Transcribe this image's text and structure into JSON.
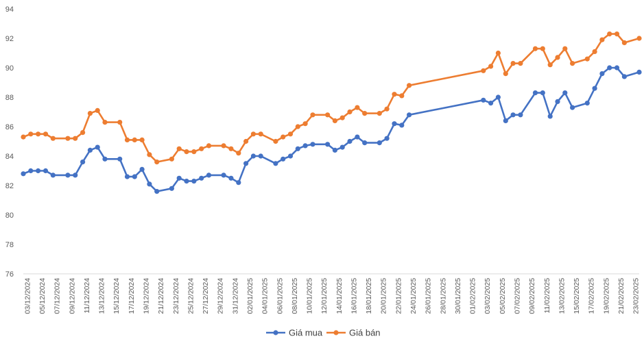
{
  "chart_data": {
    "type": "line",
    "title": "",
    "xlabel": "",
    "ylabel": "",
    "ylim": [
      76,
      94
    ],
    "yticks": [
      76,
      78,
      80,
      82,
      84,
      86,
      88,
      90,
      92,
      94
    ],
    "grid": false,
    "legend_position": "bottom",
    "x_tick_labels": [
      "03/12/2024",
      "05/12/2024",
      "07/12/2024",
      "09/12/2024",
      "11/12/2024",
      "13/12/2024",
      "15/12/2024",
      "17/12/2024",
      "19/12/2024",
      "21/12/2024",
      "23/12/2024",
      "25/12/2024",
      "27/12/2024",
      "29/12/2024",
      "31/12/2024",
      "02/01/2025",
      "04/01/2025",
      "06/01/2025",
      "08/01/2025",
      "10/01/2025",
      "12/01/2025",
      "14/01/2025",
      "16/01/2025",
      "18/01/2025",
      "20/01/2025",
      "22/01/2025",
      "24/01/2025",
      "26/01/2025",
      "28/01/2025",
      "30/01/2025",
      "01/02/2025",
      "03/02/2025",
      "05/02/2025",
      "07/02/2025",
      "09/02/2025",
      "11/02/2025",
      "13/02/2025",
      "15/02/2025",
      "17/02/2025",
      "19/02/2025",
      "21/02/2025",
      "23/02/2025"
    ],
    "x_start": "2024-12-03",
    "x_end": "2025-02-24",
    "series": [
      {
        "name": "Giá mua",
        "color": "#4472C4",
        "points": [
          [
            "2024-12-03",
            82.8
          ],
          [
            "2024-12-04",
            83.0
          ],
          [
            "2024-12-05",
            83.0
          ],
          [
            "2024-12-06",
            83.0
          ],
          [
            "2024-12-07",
            82.7
          ],
          [
            "2024-12-09",
            82.7
          ],
          [
            "2024-12-10",
            82.7
          ],
          [
            "2024-12-11",
            83.6
          ],
          [
            "2024-12-12",
            84.4
          ],
          [
            "2024-12-13",
            84.6
          ],
          [
            "2024-12-14",
            83.8
          ],
          [
            "2024-12-16",
            83.8
          ],
          [
            "2024-12-17",
            82.6
          ],
          [
            "2024-12-18",
            82.6
          ],
          [
            "2024-12-19",
            83.1
          ],
          [
            "2024-12-20",
            82.1
          ],
          [
            "2024-12-21",
            81.6
          ],
          [
            "2024-12-23",
            81.8
          ],
          [
            "2024-12-24",
            82.5
          ],
          [
            "2024-12-25",
            82.3
          ],
          [
            "2024-12-26",
            82.3
          ],
          [
            "2024-12-27",
            82.5
          ],
          [
            "2024-12-28",
            82.7
          ],
          [
            "2024-12-30",
            82.7
          ],
          [
            "2024-12-31",
            82.5
          ],
          [
            "2025-01-01",
            82.2
          ],
          [
            "2025-01-02",
            83.5
          ],
          [
            "2025-01-03",
            84.0
          ],
          [
            "2025-01-04",
            84.0
          ],
          [
            "2025-01-06",
            83.5
          ],
          [
            "2025-01-07",
            83.8
          ],
          [
            "2025-01-08",
            84.0
          ],
          [
            "2025-01-09",
            84.5
          ],
          [
            "2025-01-10",
            84.7
          ],
          [
            "2025-01-11",
            84.8
          ],
          [
            "2025-01-13",
            84.8
          ],
          [
            "2025-01-14",
            84.4
          ],
          [
            "2025-01-15",
            84.6
          ],
          [
            "2025-01-16",
            85.0
          ],
          [
            "2025-01-17",
            85.3
          ],
          [
            "2025-01-18",
            84.9
          ],
          [
            "2025-01-20",
            84.9
          ],
          [
            "2025-01-21",
            85.2
          ],
          [
            "2025-01-22",
            86.2
          ],
          [
            "2025-01-23",
            86.1
          ],
          [
            "2025-01-24",
            86.8
          ],
          [
            "2025-02-03",
            87.8
          ],
          [
            "2025-02-04",
            87.6
          ],
          [
            "2025-02-05",
            88.0
          ],
          [
            "2025-02-06",
            86.4
          ],
          [
            "2025-02-07",
            86.8
          ],
          [
            "2025-02-08",
            86.8
          ],
          [
            "2025-02-10",
            88.3
          ],
          [
            "2025-02-11",
            88.3
          ],
          [
            "2025-02-12",
            86.7
          ],
          [
            "2025-02-13",
            87.7
          ],
          [
            "2025-02-14",
            88.3
          ],
          [
            "2025-02-15",
            87.3
          ],
          [
            "2025-02-17",
            87.6
          ],
          [
            "2025-02-18",
            88.6
          ],
          [
            "2025-02-19",
            89.6
          ],
          [
            "2025-02-20",
            90.0
          ],
          [
            "2025-02-21",
            90.0
          ],
          [
            "2025-02-22",
            89.4
          ],
          [
            "2025-02-24",
            89.7
          ]
        ]
      },
      {
        "name": "Giá bán",
        "color": "#ED7D31",
        "points": [
          [
            "2024-12-03",
            85.3
          ],
          [
            "2024-12-04",
            85.5
          ],
          [
            "2024-12-05",
            85.5
          ],
          [
            "2024-12-06",
            85.5
          ],
          [
            "2024-12-07",
            85.2
          ],
          [
            "2024-12-09",
            85.2
          ],
          [
            "2024-12-10",
            85.2
          ],
          [
            "2024-12-11",
            85.6
          ],
          [
            "2024-12-12",
            86.9
          ],
          [
            "2024-12-13",
            87.1
          ],
          [
            "2024-12-14",
            86.3
          ],
          [
            "2024-12-16",
            86.3
          ],
          [
            "2024-12-17",
            85.1
          ],
          [
            "2024-12-18",
            85.1
          ],
          [
            "2024-12-19",
            85.1
          ],
          [
            "2024-12-20",
            84.1
          ],
          [
            "2024-12-21",
            83.6
          ],
          [
            "2024-12-23",
            83.8
          ],
          [
            "2024-12-24",
            84.5
          ],
          [
            "2024-12-25",
            84.3
          ],
          [
            "2024-12-26",
            84.3
          ],
          [
            "2024-12-27",
            84.5
          ],
          [
            "2024-12-28",
            84.7
          ],
          [
            "2024-12-30",
            84.7
          ],
          [
            "2024-12-31",
            84.5
          ],
          [
            "2025-01-01",
            84.2
          ],
          [
            "2025-01-02",
            85.0
          ],
          [
            "2025-01-03",
            85.5
          ],
          [
            "2025-01-04",
            85.5
          ],
          [
            "2025-01-06",
            85.0
          ],
          [
            "2025-01-07",
            85.3
          ],
          [
            "2025-01-08",
            85.5
          ],
          [
            "2025-01-09",
            86.0
          ],
          [
            "2025-01-10",
            86.2
          ],
          [
            "2025-01-11",
            86.8
          ],
          [
            "2025-01-13",
            86.8
          ],
          [
            "2025-01-14",
            86.4
          ],
          [
            "2025-01-15",
            86.6
          ],
          [
            "2025-01-16",
            87.0
          ],
          [
            "2025-01-17",
            87.3
          ],
          [
            "2025-01-18",
            86.9
          ],
          [
            "2025-01-20",
            86.9
          ],
          [
            "2025-01-21",
            87.2
          ],
          [
            "2025-01-22",
            88.2
          ],
          [
            "2025-01-23",
            88.1
          ],
          [
            "2025-01-24",
            88.8
          ],
          [
            "2025-02-03",
            89.8
          ],
          [
            "2025-02-04",
            90.1
          ],
          [
            "2025-02-05",
            91.0
          ],
          [
            "2025-02-06",
            89.6
          ],
          [
            "2025-02-07",
            90.3
          ],
          [
            "2025-02-08",
            90.3
          ],
          [
            "2025-02-10",
            91.3
          ],
          [
            "2025-02-11",
            91.3
          ],
          [
            "2025-02-12",
            90.2
          ],
          [
            "2025-02-13",
            90.7
          ],
          [
            "2025-02-14",
            91.3
          ],
          [
            "2025-02-15",
            90.3
          ],
          [
            "2025-02-17",
            90.6
          ],
          [
            "2025-02-18",
            91.1
          ],
          [
            "2025-02-19",
            91.9
          ],
          [
            "2025-02-20",
            92.3
          ],
          [
            "2025-02-21",
            92.3
          ],
          [
            "2025-02-22",
            91.7
          ],
          [
            "2025-02-24",
            92.0
          ]
        ]
      }
    ]
  }
}
